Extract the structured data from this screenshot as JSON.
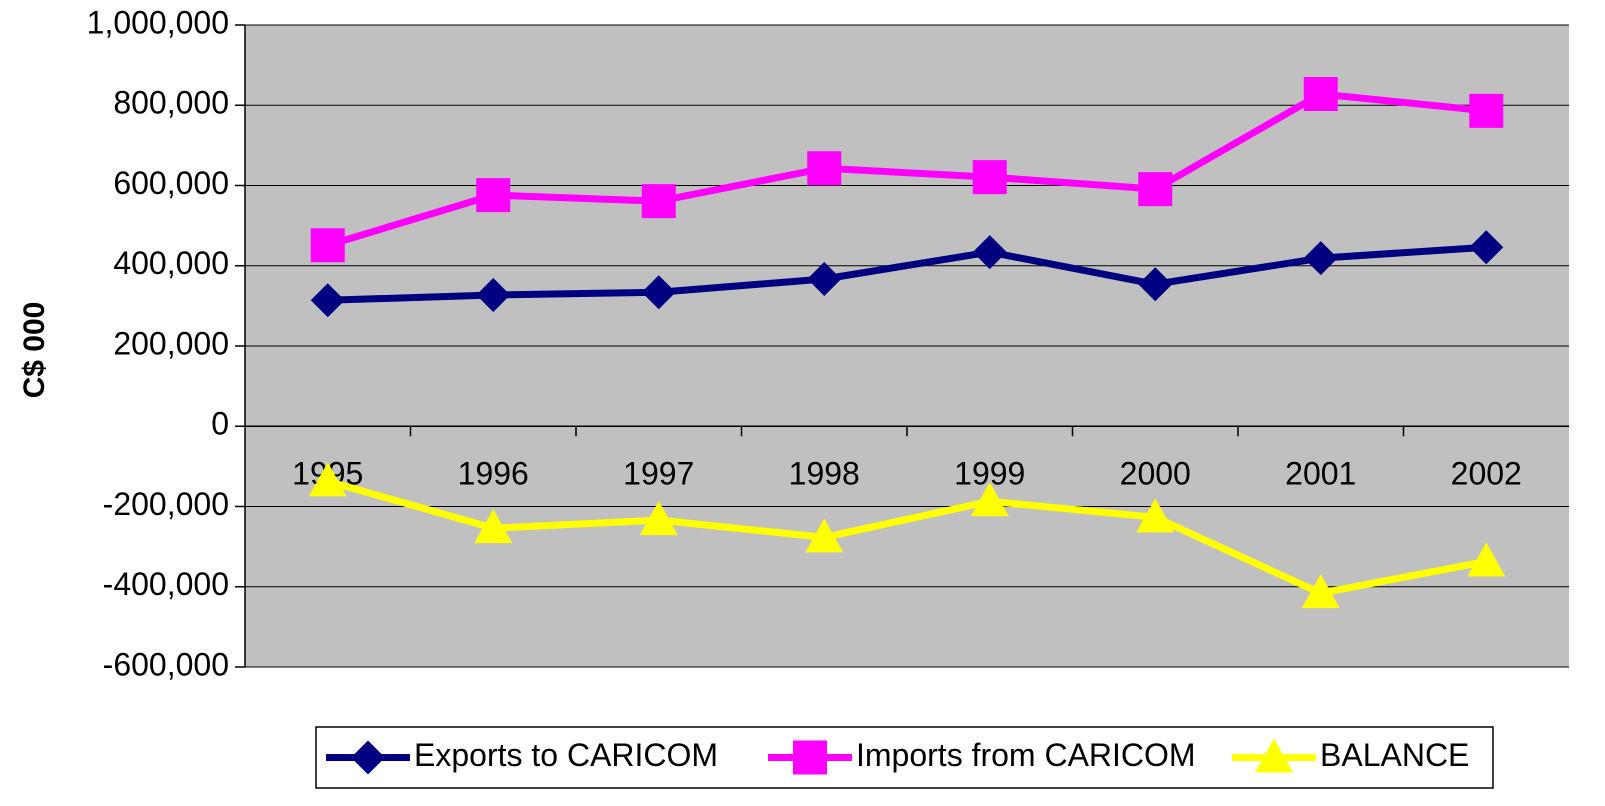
{
  "chart_data": {
    "type": "line",
    "y_label": "C$ 000",
    "categories": [
      "1995",
      "1996",
      "1997",
      "1998",
      "1999",
      "2000",
      "2001",
      "2002"
    ],
    "series": [
      {
        "name": "Exports to CARICOM",
        "color": "#000080",
        "marker": "diamond",
        "values": [
          314000,
          327000,
          334000,
          367000,
          434000,
          354000,
          419000,
          446000
        ]
      },
      {
        "name": "Imports from CARICOM",
        "color": "#ff00ff",
        "marker": "square",
        "values": [
          451000,
          576000,
          561000,
          643000,
          621000,
          591000,
          828000,
          786000
        ]
      },
      {
        "name": "BALANCE",
        "color": "#ffff00",
        "marker": "triangle",
        "values": [
          -137000,
          -254000,
          -234000,
          -277000,
          -187000,
          -227000,
          -416000,
          -337000
        ]
      }
    ],
    "ylim": [
      -600000,
      1000000
    ],
    "yticks": [
      {
        "value": -600000,
        "label": "-600,000"
      },
      {
        "value": -400000,
        "label": "-400,000"
      },
      {
        "value": -200000,
        "label": "-200,000"
      },
      0,
      {
        "value": 200000,
        "label": "200,000"
      },
      {
        "value": 400000,
        "label": "400,000"
      },
      {
        "value": 600000,
        "label": "600,000"
      },
      {
        "value": 800000,
        "label": "800,000"
      },
      {
        "value": 1000000,
        "label": "1,000,000"
      }
    ],
    "grid": true,
    "plot_background": "#c0c0c0",
    "legend": "bottom"
  }
}
